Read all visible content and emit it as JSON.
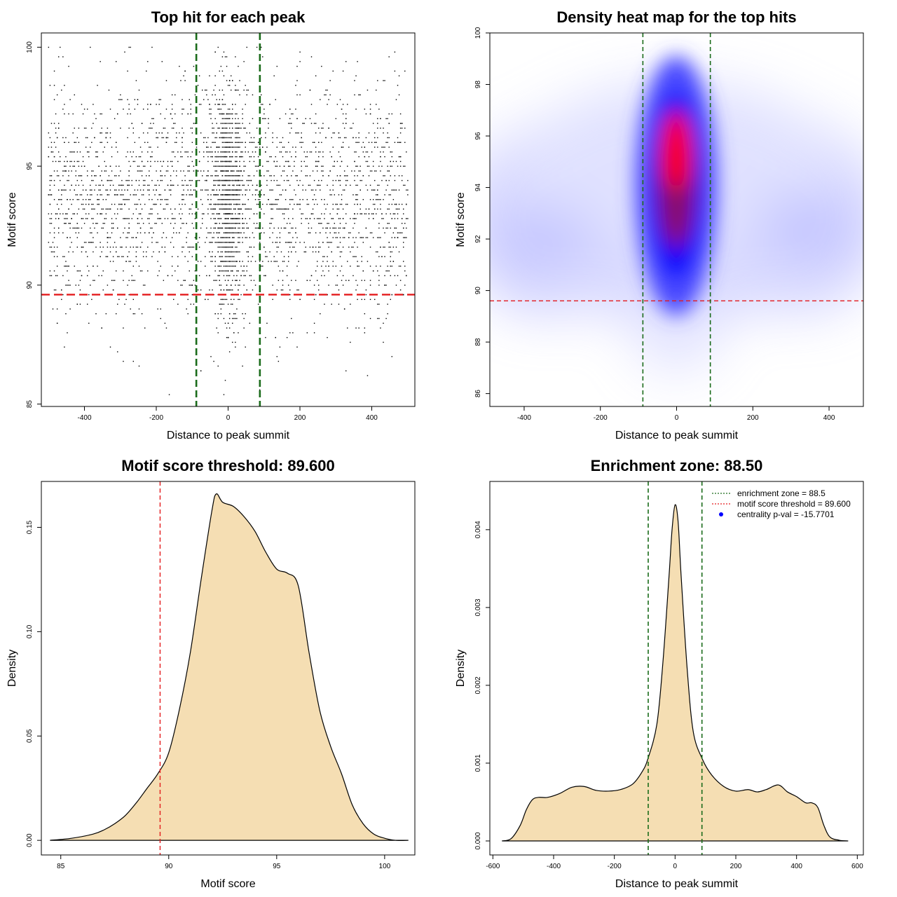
{
  "colors": {
    "threshold": "#e31a1c",
    "zone": "#1a6b1a",
    "fill": "#f5deb3",
    "points": "#000000",
    "heat_low": "#ffffff",
    "heat_mid": "#0000ff",
    "heat_high": "#ff0000"
  },
  "chart_data": [
    {
      "type": "scatter",
      "title": "Top hit for each peak",
      "xlabel": "Distance to peak summit",
      "ylabel": "Motif score",
      "xlim": [
        -520,
        520
      ],
      "ylim": [
        84.9,
        100.6
      ],
      "xticks": [
        -400,
        -200,
        0,
        200,
        400
      ],
      "yticks": [
        85,
        90,
        95,
        100
      ],
      "point_count": 4000,
      "point_distribution": {
        "x_range": [
          -500,
          500
        ],
        "central_fraction": 0.28,
        "central_sd": 22,
        "score_mean": 93.6,
        "score_sd": 2.4,
        "score_range": [
          85.4,
          99.9
        ]
      },
      "threshold_y": 89.6,
      "zone_x": [
        -88.5,
        88.5
      ],
      "grid": false
    },
    {
      "type": "heatmap",
      "title": "Density heat map for the top hits",
      "xlabel": "Distance to peak summit",
      "ylabel": "Motif score",
      "xlim": [
        -490,
        490
      ],
      "ylim": [
        85.5,
        100
      ],
      "xticks": [
        -400,
        -200,
        0,
        200,
        400
      ],
      "yticks": [
        86,
        88,
        90,
        92,
        94,
        96,
        98,
        100
      ],
      "threshold_y": 89.6,
      "zone_x": [
        -88.5,
        88.5
      ],
      "grid": false
    },
    {
      "type": "area",
      "title": "Motif score threshold: 89.600",
      "xlabel": "Motif score",
      "ylabel": "Density",
      "xlim": [
        84.1,
        101.4
      ],
      "ylim": [
        -0.007,
        0.172
      ],
      "xticks": [
        85,
        90,
        95,
        100
      ],
      "yticks": [
        0.0,
        0.05,
        0.1,
        0.15
      ],
      "ytick_labels": [
        "0.00",
        "0.05",
        "0.10",
        "0.15"
      ],
      "x": [
        84.5,
        85.5,
        86.5,
        87.0,
        87.5,
        88.0,
        88.5,
        89.0,
        89.5,
        90.0,
        90.5,
        91.0,
        91.5,
        92.0,
        92.2,
        92.5,
        93.0,
        93.5,
        94.0,
        94.5,
        95.0,
        95.5,
        96.0,
        96.5,
        97.0,
        97.5,
        98.0,
        98.5,
        99.0,
        99.5,
        100.0,
        100.5,
        101.1
      ],
      "y": [
        0.0,
        0.001,
        0.003,
        0.005,
        0.008,
        0.012,
        0.018,
        0.025,
        0.032,
        0.042,
        0.063,
        0.09,
        0.125,
        0.158,
        0.166,
        0.162,
        0.16,
        0.155,
        0.148,
        0.138,
        0.13,
        0.128,
        0.122,
        0.09,
        0.062,
        0.045,
        0.032,
        0.017,
        0.008,
        0.003,
        0.001,
        0.0,
        0.0
      ],
      "threshold_x": 89.6,
      "grid": false
    },
    {
      "type": "area",
      "title": "Enrichment zone: 88.50",
      "xlabel": "Distance to peak summit",
      "ylabel": "Density",
      "xlim": [
        -610,
        620
      ],
      "ylim": [
        -0.00018,
        0.00462
      ],
      "xticks": [
        -600,
        -400,
        -200,
        0,
        200,
        400,
        600
      ],
      "yticks": [
        0.0,
        0.001,
        0.002,
        0.003,
        0.004
      ],
      "ytick_labels": [
        "0.000",
        "0.001",
        "0.002",
        "0.003",
        "0.004"
      ],
      "x": [
        -570,
        -540,
        -510,
        -490,
        -470,
        -450,
        -420,
        -380,
        -340,
        -300,
        -260,
        -220,
        -180,
        -140,
        -110,
        -90,
        -60,
        -40,
        -20,
        -10,
        0,
        10,
        20,
        40,
        60,
        90,
        120,
        160,
        200,
        240,
        270,
        300,
        340,
        370,
        400,
        430,
        450,
        470,
        490,
        510,
        540,
        570
      ],
      "y": [
        0.0,
        3e-05,
        0.0002,
        0.0004,
        0.00053,
        0.00056,
        0.00056,
        0.00061,
        0.00069,
        0.0007,
        0.00065,
        0.00064,
        0.00066,
        0.00073,
        0.00088,
        0.00105,
        0.0015,
        0.0023,
        0.0034,
        0.004,
        0.00432,
        0.0041,
        0.0034,
        0.0022,
        0.0014,
        0.00105,
        0.00085,
        0.0007,
        0.00064,
        0.00066,
        0.00063,
        0.00066,
        0.00072,
        0.00063,
        0.00057,
        0.00049,
        0.00049,
        0.00043,
        0.0002,
        5e-05,
        1e-05,
        0.0
      ],
      "zone_x": [
        -88.5,
        88.5
      ],
      "legend": {
        "placement": "top-right",
        "entries": [
          {
            "label": "enrichment zone = 88.5",
            "style": "dotted-line",
            "color": "#1a6b1a"
          },
          {
            "label": "motif score threshold = 89.600",
            "style": "dotted-line",
            "color": "#e31a1c"
          },
          {
            "label": "centrality p-val = -15.7701",
            "style": "point",
            "color": "#0000ff"
          }
        ]
      },
      "grid": false
    }
  ]
}
